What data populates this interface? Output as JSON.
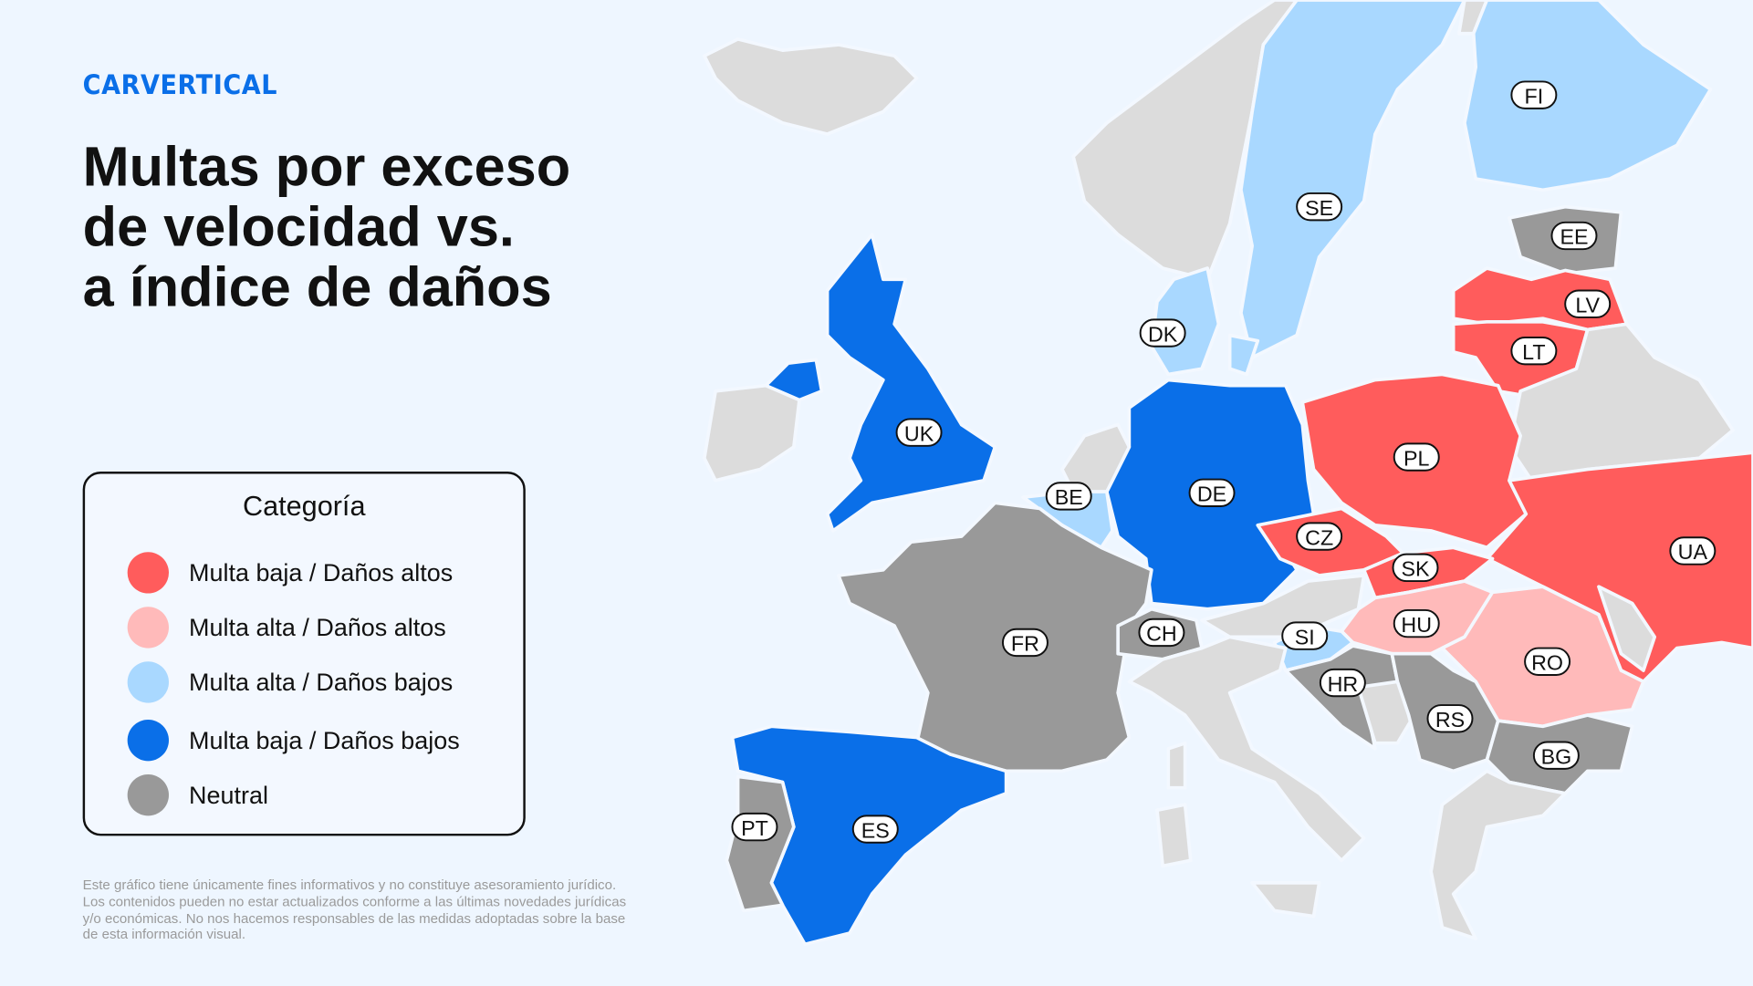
{
  "brand": {
    "logo_text": "CARVERTICAL",
    "color": "#0a6fe8"
  },
  "title_lines": [
    "Multas por exceso",
    "de velocidad vs.",
    "a índice de daños"
  ],
  "legend": {
    "title": "Categoría",
    "items": [
      {
        "label": "Multa baja / Daños altos",
        "color": "#ff5c5c"
      },
      {
        "label": "Multa alta / Daños altos",
        "color": "#ffbaba"
      },
      {
        "label": "Multa alta / Daños bajos",
        "color": "#a9d8ff"
      },
      {
        "label": "Multa baja / Daños bajos",
        "color": "#0a6fe8"
      },
      {
        "label": "Neutral",
        "color": "#999999"
      }
    ]
  },
  "colors": {
    "background": "#eef6ff",
    "no_data": "#dcdcdc"
  },
  "disclaimer": "Este gráfico tiene únicamente fines informativos y no constituye asesoramiento jurídico. Los contenidos pueden no estar actualizados conforme a las últimas novedades jurídicas y/o económicas. No nos hacemos responsables de las medidas adoptadas sobre la base de esta información visual.",
  "countries": [
    {
      "code": "FI",
      "category": "Multa alta / Daños bajos"
    },
    {
      "code": "SE",
      "category": "Multa alta / Daños bajos"
    },
    {
      "code": "EE",
      "category": "Neutral"
    },
    {
      "code": "LV",
      "category": "Multa baja / Daños altos"
    },
    {
      "code": "LT",
      "category": "Multa baja / Daños altos"
    },
    {
      "code": "DK",
      "category": "Multa alta / Daños bajos"
    },
    {
      "code": "UK",
      "category": "Multa baja / Daños bajos"
    },
    {
      "code": "PL",
      "category": "Multa baja / Daños altos"
    },
    {
      "code": "DE",
      "category": "Multa baja / Daños bajos"
    },
    {
      "code": "BE",
      "category": "Multa alta / Daños bajos"
    },
    {
      "code": "CZ",
      "category": "Multa baja / Daños altos"
    },
    {
      "code": "SK",
      "category": "Multa baja / Daños altos"
    },
    {
      "code": "UA",
      "category": "Multa baja / Daños altos"
    },
    {
      "code": "FR",
      "category": "Neutral"
    },
    {
      "code": "CH",
      "category": "Neutral"
    },
    {
      "code": "SI",
      "category": "Multa alta / Daños bajos"
    },
    {
      "code": "HU",
      "category": "Multa alta / Daños altos"
    },
    {
      "code": "RO",
      "category": "Multa alta / Daños altos"
    },
    {
      "code": "HR",
      "category": "Neutral"
    },
    {
      "code": "RS",
      "category": "Neutral"
    },
    {
      "code": "BG",
      "category": "Neutral"
    },
    {
      "code": "PT",
      "category": "Neutral"
    },
    {
      "code": "ES",
      "category": "Multa baja / Daños bajos"
    }
  ]
}
